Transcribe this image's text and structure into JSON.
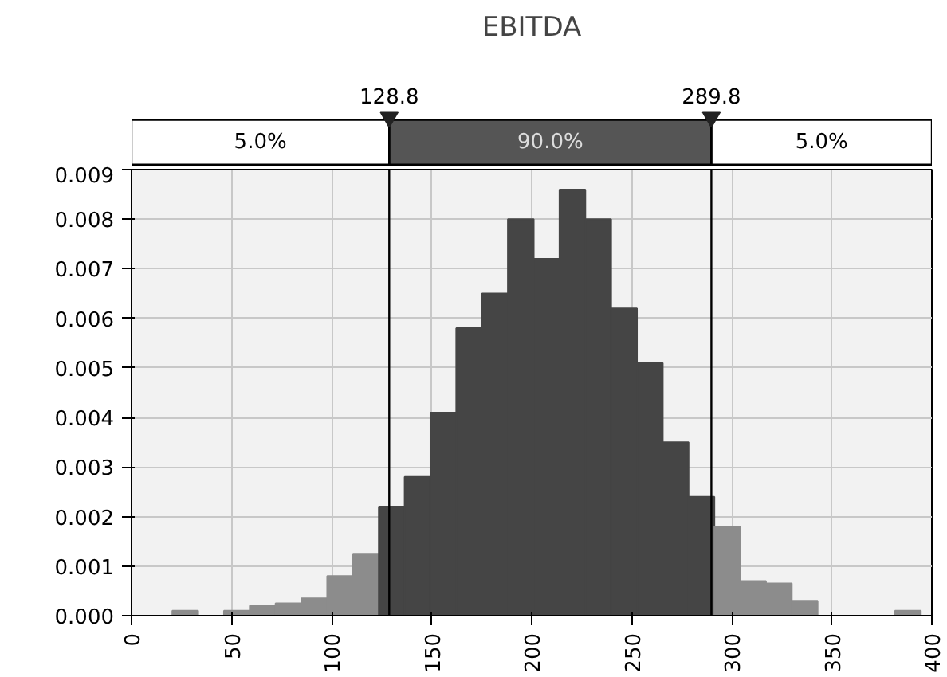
{
  "chart_data": {
    "type": "histogram",
    "title": "EBITDA",
    "bins": [
      20.4,
      33.3,
      46.2,
      59.1,
      72.0,
      84.9,
      97.8,
      110.7,
      123.6,
      136.5,
      149.4,
      162.3,
      175.2,
      188.1,
      201.0,
      213.9,
      226.8,
      239.7,
      252.6,
      265.5,
      278.4,
      291.3,
      304.2,
      317.1,
      330.0,
      342.9,
      355.8,
      368.7,
      381.6,
      394.5
    ],
    "values": [
      0.0001,
      0,
      0.0001,
      0.0002,
      0.00025,
      0.00035,
      0.0008,
      0.00125,
      0.0022,
      0.0028,
      0.0041,
      0.0058,
      0.0065,
      0.008,
      0.0072,
      0.0086,
      0.008,
      0.0062,
      0.0051,
      0.0035,
      0.0024,
      0.0018,
      0.0007,
      0.00065,
      0.0003,
      0,
      0,
      0,
      0.0001
    ],
    "colors": [
      "#8c8c8c",
      "#8c8c8c",
      "#8c8c8c",
      "#8c8c8c",
      "#8c8c8c",
      "#8c8c8c",
      "#8c8c8c",
      "#8c8c8c",
      "#454545",
      "#454545",
      "#454545",
      "#454545",
      "#454545",
      "#454545",
      "#454545",
      "#454545",
      "#454545",
      "#454545",
      "#454545",
      "#454545",
      "#454545",
      "#8c8c8c",
      "#8c8c8c",
      "#8c8c8c",
      "#8c8c8c",
      "#8c8c8c",
      "#8c8c8c",
      "#8c8c8c",
      "#8c8c8c"
    ],
    "xlim": [
      0,
      400
    ],
    "xticks": [
      0,
      50,
      100,
      150,
      200,
      250,
      300,
      350,
      400
    ],
    "ylim": [
      0,
      0.009
    ],
    "yticks": [
      {
        "value": 0,
        "label": "0.000"
      },
      {
        "value": 0.001,
        "label": "0.001"
      },
      {
        "value": 0.002,
        "label": "0.002"
      },
      {
        "value": 0.003,
        "label": "0.003"
      },
      {
        "value": 0.004,
        "label": "0.004"
      },
      {
        "value": 0.005,
        "label": "0.005"
      },
      {
        "value": 0.006,
        "label": "0.006"
      },
      {
        "value": 0.007,
        "label": "0.007"
      },
      {
        "value": 0.008,
        "label": "0.008"
      },
      {
        "value": 0.009,
        "label": "0.009"
      }
    ],
    "ref_lines": [
      {
        "axis": "x",
        "value": 128.8,
        "label": "128.8",
        "color": "#000000"
      },
      {
        "axis": "x",
        "value": 289.8,
        "label": "289.8",
        "color": "#000000"
      }
    ],
    "annotations": [
      "5.0%",
      "90.0%",
      "5.0%"
    ],
    "grid": true
  }
}
